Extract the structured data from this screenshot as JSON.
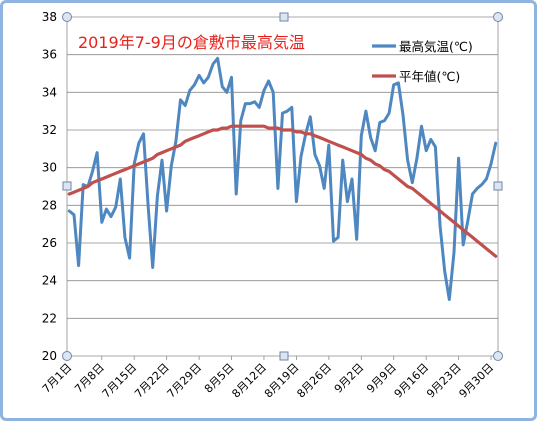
{
  "chart_data": {
    "type": "line",
    "title": "2019年7-9月の倉敷市最高気温",
    "ylim": [
      20,
      38
    ],
    "y_ticks": [
      "20",
      "22",
      "24",
      "26",
      "28",
      "30",
      "32",
      "34",
      "36",
      "38"
    ],
    "x_tick_labels": [
      "7月1日",
      "7月8日",
      "7月15日",
      "7月22日",
      "7月29日",
      "8月5日",
      "8月12日",
      "8月19日",
      "8月26日",
      "9月2日",
      "9月9日",
      "9月16日",
      "9月23日",
      "9月30日"
    ],
    "grid": "horizontal",
    "legend_position": "top-right",
    "series": [
      {
        "name": "最高気温(℃)",
        "color": "#4f87c1",
        "values": [
          27.7,
          27.5,
          24.8,
          29.1,
          29.0,
          29.8,
          30.8,
          27.1,
          27.8,
          27.4,
          27.9,
          29.4,
          26.3,
          25.2,
          30.2,
          31.3,
          31.8,
          28.0,
          24.7,
          28.5,
          30.4,
          27.7,
          30.1,
          31.4,
          33.6,
          33.3,
          34.1,
          34.4,
          34.9,
          34.5,
          34.8,
          35.5,
          35.8,
          34.3,
          34.0,
          34.8,
          28.6,
          32.5,
          33.4,
          33.4,
          33.5,
          33.2,
          34.1,
          34.6,
          34.0,
          28.9,
          32.9,
          33.0,
          33.2,
          28.2,
          30.6,
          31.8,
          32.7,
          30.7,
          30.1,
          28.9,
          31.2,
          26.1,
          26.3,
          30.4,
          28.2,
          29.4,
          26.2,
          31.7,
          33.0,
          31.6,
          30.9,
          32.4,
          32.5,
          32.9,
          34.4,
          34.5,
          32.8,
          30.4,
          29.2,
          30.5,
          32.2,
          30.9,
          31.5,
          31.1,
          26.9,
          24.5,
          23.0,
          25.5,
          30.5,
          25.9,
          27.2,
          28.6,
          28.9,
          29.1,
          29.4,
          30.2,
          31.3
        ]
      },
      {
        "name": "平年値(℃)",
        "color": "#c0504d",
        "values": [
          28.6,
          28.7,
          28.8,
          28.9,
          29.0,
          29.2,
          29.3,
          29.4,
          29.5,
          29.6,
          29.7,
          29.8,
          29.9,
          30.0,
          30.1,
          30.2,
          30.3,
          30.4,
          30.5,
          30.7,
          30.8,
          30.9,
          31.0,
          31.1,
          31.2,
          31.4,
          31.5,
          31.6,
          31.7,
          31.8,
          31.9,
          32.0,
          32.0,
          32.1,
          32.1,
          32.2,
          32.2,
          32.2,
          32.2,
          32.2,
          32.2,
          32.2,
          32.2,
          32.1,
          32.1,
          32.1,
          32.0,
          32.0,
          32.0,
          31.9,
          31.9,
          31.8,
          31.8,
          31.7,
          31.6,
          31.5,
          31.4,
          31.3,
          31.2,
          31.1,
          31.0,
          30.9,
          30.8,
          30.7,
          30.5,
          30.4,
          30.2,
          30.1,
          29.9,
          29.8,
          29.6,
          29.4,
          29.2,
          29.0,
          28.9,
          28.7,
          28.5,
          28.3,
          28.1,
          27.9,
          27.7,
          27.5,
          27.3,
          27.1,
          26.9,
          26.7,
          26.5,
          26.3,
          26.1,
          25.9,
          25.7,
          25.5,
          25.3
        ]
      }
    ]
  }
}
